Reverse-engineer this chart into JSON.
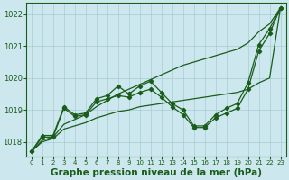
{
  "background_color": "#cce8ee",
  "grid_color": "#aaccd4",
  "line_color": "#1a5c1a",
  "title": "Graphe pression niveau de la mer (hPa)",
  "title_fontsize": 7.5,
  "ylim": [
    1017.55,
    1022.35
  ],
  "xlim": [
    -0.5,
    23.5
  ],
  "yticks": [
    1018,
    1019,
    1020,
    1021,
    1022
  ],
  "x_ticks": [
    0,
    1,
    2,
    3,
    4,
    5,
    6,
    7,
    8,
    9,
    10,
    11,
    12,
    13,
    14,
    15,
    16,
    17,
    18,
    19,
    20,
    21,
    22,
    23
  ],
  "upper_envelope": [
    1017.7,
    1018.05,
    1018.15,
    1018.55,
    1018.7,
    1018.85,
    1019.1,
    1019.3,
    1019.5,
    1019.65,
    1019.8,
    1019.95,
    1020.1,
    1020.25,
    1020.4,
    1020.5,
    1020.6,
    1020.7,
    1020.8,
    1020.9,
    1021.1,
    1021.45,
    1021.7,
    1022.2
  ],
  "lower_envelope": [
    1017.7,
    1018.0,
    1018.1,
    1018.4,
    1018.5,
    1018.6,
    1018.75,
    1018.85,
    1018.95,
    1019.0,
    1019.1,
    1019.15,
    1019.2,
    1019.25,
    1019.3,
    1019.35,
    1019.4,
    1019.45,
    1019.5,
    1019.55,
    1019.65,
    1019.85,
    1020.0,
    1022.2
  ],
  "zigzag_high": [
    1017.7,
    1018.2,
    1018.2,
    1019.1,
    1018.85,
    1018.9,
    1019.35,
    1019.45,
    1019.75,
    1019.5,
    1019.75,
    1019.9,
    1019.55,
    1019.2,
    1019.0,
    1018.5,
    1018.5,
    1018.85,
    1019.05,
    1019.2,
    1019.85,
    1021.05,
    1021.55,
    1022.2
  ],
  "zigzag_low": [
    1017.7,
    1018.15,
    1018.15,
    1019.05,
    1018.8,
    1018.85,
    1019.25,
    1019.35,
    1019.45,
    1019.4,
    1019.55,
    1019.65,
    1019.4,
    1019.1,
    1018.85,
    1018.45,
    1018.45,
    1018.75,
    1018.9,
    1019.05,
    1019.65,
    1020.85,
    1021.4,
    1022.2
  ]
}
